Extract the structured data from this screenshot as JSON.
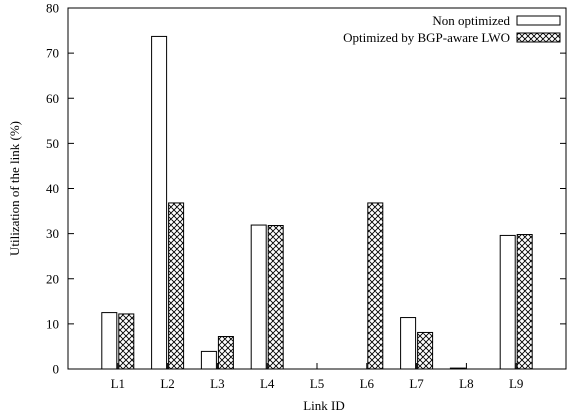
{
  "chart_data": {
    "type": "bar",
    "title": "",
    "xlabel": "Link ID",
    "ylabel": "Utilization of the link (%)",
    "ylim": [
      0,
      80
    ],
    "yticks": [
      0,
      10,
      20,
      30,
      40,
      50,
      60,
      70,
      80
    ],
    "categories": [
      "L1",
      "L2",
      "L3",
      "L4",
      "L5",
      "L6",
      "L7",
      "L8",
      "L9"
    ],
    "legend_position": "top-right",
    "grid": false,
    "series": [
      {
        "name": "Non optimized",
        "pattern": "plain",
        "values": [
          12.5,
          73.7,
          3.9,
          31.9,
          0,
          0,
          11.4,
          0.2,
          29.6
        ]
      },
      {
        "name": "Optimized by BGP-aware LWO",
        "pattern": "crosshatch",
        "values": [
          12.2,
          36.8,
          7.2,
          31.8,
          0,
          36.8,
          8.1,
          0,
          29.8
        ]
      }
    ]
  }
}
